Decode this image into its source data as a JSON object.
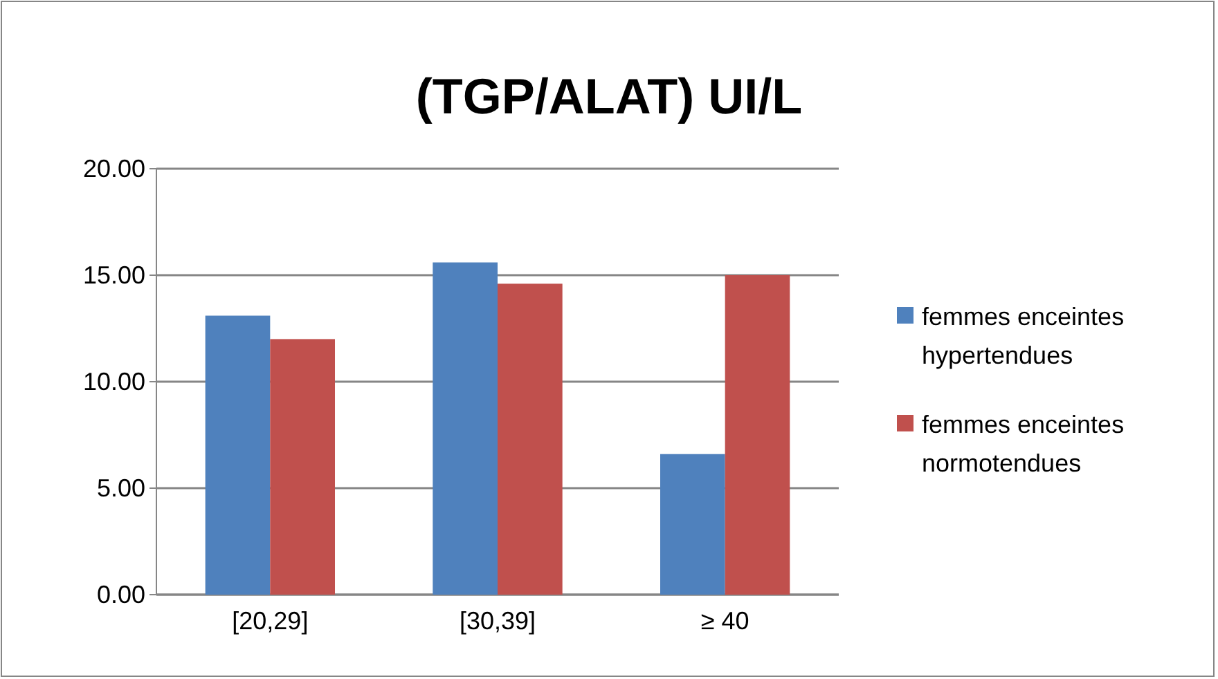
{
  "chart_data": {
    "type": "bar",
    "title": "(TGP/ALAT) UI/L",
    "categories": [
      "[20,29]",
      "[30,39]",
      "≥ 40"
    ],
    "series": [
      {
        "name": "femmes enceintes hypertendues",
        "color": "#4f81bd",
        "values": [
          13.1,
          15.6,
          6.6
        ]
      },
      {
        "name": "femmes enceintes normotendues",
        "color": "#c0504d",
        "values": [
          12.0,
          14.6,
          15.0
        ]
      }
    ],
    "ylim": [
      0,
      20
    ],
    "yticks": [
      {
        "value": 0,
        "label": "0.00"
      },
      {
        "value": 5,
        "label": "5.00"
      },
      {
        "value": 10,
        "label": "10.00"
      },
      {
        "value": 15,
        "label": "15.00"
      },
      {
        "value": 20,
        "label": "20.00"
      }
    ],
    "grid": "y",
    "legend": "right"
  }
}
